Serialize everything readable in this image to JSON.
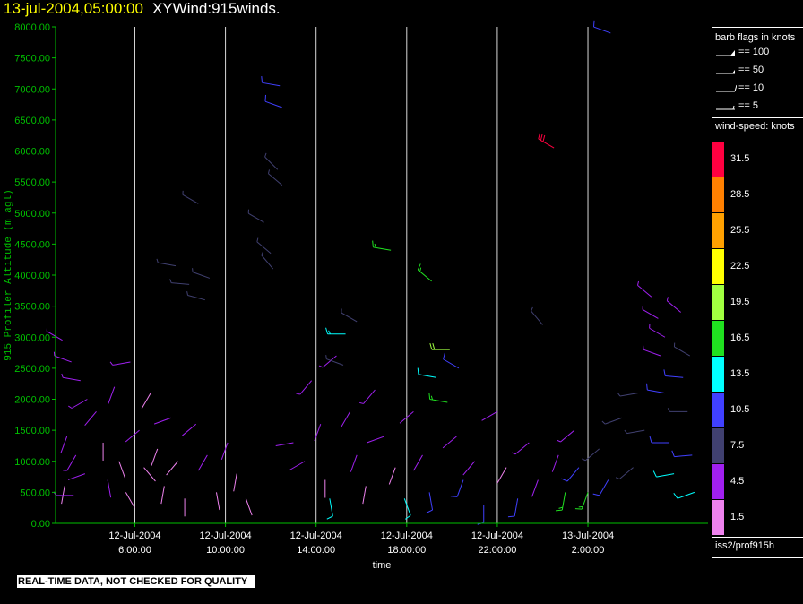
{
  "title": {
    "timestamp": "13-jul-2004,05:00:00",
    "name": "XYWind:915winds."
  },
  "chart_data": {
    "type": "scatter",
    "title": "13-jul-2004,05:00:00  XYWind:915winds.",
    "xlabel": "time",
    "ylabel": "915 Profiler Altitude (m agl)",
    "ylim": [
      0,
      8000
    ],
    "y_ticks": [
      "0.00",
      "500.00",
      "1000.00",
      "1500.00",
      "2000.00",
      "2500.00",
      "3000.00",
      "3500.00",
      "4000.00",
      "4500.00",
      "5000.00",
      "5500.00",
      "6000.00",
      "6500.00",
      "7000.00",
      "7500.00",
      "8000.00"
    ],
    "y_tick_values": [
      0,
      500,
      1000,
      1500,
      2000,
      2500,
      3000,
      3500,
      4000,
      4500,
      5000,
      5500,
      6000,
      6500,
      7000,
      7500,
      8000
    ],
    "xlim_hours": [
      2.5,
      31.3
    ],
    "x_ticks": [
      {
        "hour": 6,
        "line1": "12-Jul-2004",
        "line2": "6:00:00"
      },
      {
        "hour": 10,
        "line1": "12-Jul-2004",
        "line2": "10:00:00"
      },
      {
        "hour": 14,
        "line1": "12-Jul-2004",
        "line2": "14:00:00"
      },
      {
        "hour": 18,
        "line1": "12-Jul-2004",
        "line2": "18:00:00"
      },
      {
        "hour": 22,
        "line1": "12-Jul-2004",
        "line2": "22:00:00"
      },
      {
        "hour": 26,
        "line1": "13-Jul-2004",
        "line2": "2:00:00"
      }
    ],
    "x_axis_note": "x values are hours from 12-Jul-2004 00:00:00",
    "grid": "vertical lines at x ticks",
    "series_note": "wind barbs: one per (time, altitude); speed in knots sets colour, direction in degrees",
    "barbs": [
      {
        "t": 2.8,
        "alt": 2950,
        "spd": 5,
        "dir": 300
      },
      {
        "t": 3.2,
        "alt": 2600,
        "spd": 6,
        "dir": 290
      },
      {
        "t": 3.6,
        "alt": 2300,
        "spd": 6,
        "dir": 280
      },
      {
        "t": 3.9,
        "alt": 2000,
        "spd": 5,
        "dir": 240
      },
      {
        "t": 3.0,
        "alt": 1400,
        "spd": 4,
        "dir": 200
      },
      {
        "t": 3.4,
        "alt": 1100,
        "spd": 5,
        "dir": 210
      },
      {
        "t": 3.8,
        "alt": 800,
        "spd": 4,
        "dir": 250
      },
      {
        "t": 2.9,
        "alt": 600,
        "spd": 3,
        "dir": 190
      },
      {
        "t": 3.3,
        "alt": 450,
        "spd": 5,
        "dir": 270
      },
      {
        "t": 4.3,
        "alt": 1800,
        "spd": 4,
        "dir": 220
      },
      {
        "t": 4.6,
        "alt": 1300,
        "spd": 3,
        "dir": 180
      },
      {
        "t": 4.8,
        "alt": 700,
        "spd": 4,
        "dir": 170
      },
      {
        "t": 5.1,
        "alt": 2200,
        "spd": 4,
        "dir": 200
      },
      {
        "t": 5.3,
        "alt": 1000,
        "spd": 3,
        "dir": 160
      },
      {
        "t": 5.6,
        "alt": 500,
        "spd": 3,
        "dir": 150
      },
      {
        "t": 5.8,
        "alt": 2600,
        "spd": 5,
        "dir": 260
      },
      {
        "t": 6.2,
        "alt": 1500,
        "spd": 4,
        "dir": 230
      },
      {
        "t": 6.4,
        "alt": 900,
        "spd": 2,
        "dir": 140
      },
      {
        "t": 6.7,
        "alt": 2100,
        "spd": 3,
        "dir": 210
      },
      {
        "t": 7.0,
        "alt": 1200,
        "spd": 3,
        "dir": 200
      },
      {
        "t": 7.3,
        "alt": 600,
        "spd": 2,
        "dir": 190
      },
      {
        "t": 7.6,
        "alt": 1700,
        "spd": 4,
        "dir": 250
      },
      {
        "t": 7.9,
        "alt": 1000,
        "spd": 3,
        "dir": 220
      },
      {
        "t": 8.2,
        "alt": 400,
        "spd": 3,
        "dir": 180
      },
      {
        "t": 7.8,
        "alt": 4150,
        "spd": 8,
        "dir": 280
      },
      {
        "t": 8.4,
        "alt": 3850,
        "spd": 8,
        "dir": 275
      },
      {
        "t": 9.3,
        "alt": 3950,
        "spd": 9,
        "dir": 290
      },
      {
        "t": 9.1,
        "alt": 3600,
        "spd": 8,
        "dir": 285
      },
      {
        "t": 8.8,
        "alt": 5150,
        "spd": 8,
        "dir": 300
      },
      {
        "t": 8.7,
        "alt": 1600,
        "spd": 4,
        "dir": 230
      },
      {
        "t": 9.2,
        "alt": 1100,
        "spd": 4,
        "dir": 210
      },
      {
        "t": 9.6,
        "alt": 500,
        "spd": 3,
        "dir": 170
      },
      {
        "t": 10.1,
        "alt": 1300,
        "spd": 4,
        "dir": 200
      },
      {
        "t": 10.5,
        "alt": 800,
        "spd": 3,
        "dir": 190
      },
      {
        "t": 10.9,
        "alt": 400,
        "spd": 2,
        "dir": 160
      },
      {
        "t": 11.7,
        "alt": 4850,
        "spd": 8,
        "dir": 300
      },
      {
        "t": 12.0,
        "alt": 4350,
        "spd": 7,
        "dir": 310
      },
      {
        "t": 12.1,
        "alt": 4100,
        "spd": 8,
        "dir": 320
      },
      {
        "t": 12.3,
        "alt": 5700,
        "spd": 8,
        "dir": 315
      },
      {
        "t": 12.5,
        "alt": 5450,
        "spd": 9,
        "dir": 310
      },
      {
        "t": 12.4,
        "alt": 7050,
        "spd": 11,
        "dir": 280
      },
      {
        "t": 12.5,
        "alt": 6700,
        "spd": 10,
        "dir": 290
      },
      {
        "t": 13.0,
        "alt": 1300,
        "spd": 4,
        "dir": 260
      },
      {
        "t": 13.5,
        "alt": 1000,
        "spd": 4,
        "dir": 240
      },
      {
        "t": 13.8,
        "alt": 2300,
        "spd": 5,
        "dir": 220
      },
      {
        "t": 14.2,
        "alt": 1600,
        "spd": 4,
        "dir": 200
      },
      {
        "t": 14.4,
        "alt": 700,
        "spd": 3,
        "dir": 180
      },
      {
        "t": 14.6,
        "alt": 400,
        "spd": 13,
        "dir": 170
      },
      {
        "t": 14.9,
        "alt": 2700,
        "spd": 6,
        "dir": 230
      },
      {
        "t": 15.3,
        "alt": 3050,
        "spd": 15,
        "dir": 270
      },
      {
        "t": 15.8,
        "alt": 3250,
        "spd": 8,
        "dir": 300
      },
      {
        "t": 15.2,
        "alt": 2550,
        "spd": 9,
        "dir": 290
      },
      {
        "t": 15.5,
        "alt": 1800,
        "spd": 4,
        "dir": 210
      },
      {
        "t": 15.8,
        "alt": 1100,
        "spd": 4,
        "dir": 200
      },
      {
        "t": 16.2,
        "alt": 600,
        "spd": 3,
        "dir": 190
      },
      {
        "t": 16.6,
        "alt": 2150,
        "spd": 5,
        "dir": 220
      },
      {
        "t": 17.0,
        "alt": 1400,
        "spd": 4,
        "dir": 250
      },
      {
        "t": 17.3,
        "alt": 4400,
        "spd": 17,
        "dir": 280
      },
      {
        "t": 17.5,
        "alt": 900,
        "spd": 3,
        "dir": 200
      },
      {
        "t": 17.9,
        "alt": 400,
        "spd": 13,
        "dir": 160
      },
      {
        "t": 18.3,
        "alt": 1800,
        "spd": 4,
        "dir": 230
      },
      {
        "t": 18.7,
        "alt": 1100,
        "spd": 4,
        "dir": 210
      },
      {
        "t": 19.0,
        "alt": 500,
        "spd": 12,
        "dir": 170
      },
      {
        "t": 19.1,
        "alt": 3900,
        "spd": 17,
        "dir": 310
      },
      {
        "t": 19.3,
        "alt": 2350,
        "spd": 14,
        "dir": 280
      },
      {
        "t": 19.9,
        "alt": 2800,
        "spd": 21,
        "dir": 270
      },
      {
        "t": 19.8,
        "alt": 1950,
        "spd": 16,
        "dir": 280
      },
      {
        "t": 20.2,
        "alt": 1400,
        "spd": 4,
        "dir": 230
      },
      {
        "t": 20.5,
        "alt": 700,
        "spd": 11,
        "dir": 200
      },
      {
        "t": 20.3,
        "alt": 2500,
        "spd": 10,
        "dir": 300
      },
      {
        "t": 21.0,
        "alt": 1000,
        "spd": 4,
        "dir": 220
      },
      {
        "t": 21.4,
        "alt": 300,
        "spd": 12,
        "dir": 180
      },
      {
        "t": 22.0,
        "alt": 1800,
        "spd": 4,
        "dir": 240
      },
      {
        "t": 22.4,
        "alt": 900,
        "spd": 3,
        "dir": 210
      },
      {
        "t": 22.9,
        "alt": 400,
        "spd": 10,
        "dir": 190
      },
      {
        "t": 23.4,
        "alt": 1300,
        "spd": 5,
        "dir": 230
      },
      {
        "t": 23.8,
        "alt": 700,
        "spd": 4,
        "dir": 200
      },
      {
        "t": 24.0,
        "alt": 3200,
        "spd": 9,
        "dir": 320
      },
      {
        "t": 24.5,
        "alt": 6050,
        "spd": 33,
        "dir": 300
      },
      {
        "t": 24.7,
        "alt": 1100,
        "spd": 4,
        "dir": 200
      },
      {
        "t": 25.0,
        "alt": 500,
        "spd": 16,
        "dir": 190
      },
      {
        "t": 25.4,
        "alt": 1500,
        "spd": 5,
        "dir": 230
      },
      {
        "t": 25.6,
        "alt": 900,
        "spd": 12,
        "dir": 220
      },
      {
        "t": 26.0,
        "alt": 500,
        "spd": 18,
        "dir": 200
      },
      {
        "t": 26.5,
        "alt": 1200,
        "spd": 9,
        "dir": 230
      },
      {
        "t": 26.9,
        "alt": 700,
        "spd": 10,
        "dir": 210
      },
      {
        "t": 27.0,
        "alt": 7900,
        "spd": 12,
        "dir": 290
      },
      {
        "t": 27.5,
        "alt": 1700,
        "spd": 8,
        "dir": 250
      },
      {
        "t": 28.0,
        "alt": 900,
        "spd": 9,
        "dir": 230
      },
      {
        "t": 28.2,
        "alt": 2100,
        "spd": 8,
        "dir": 260
      },
      {
        "t": 28.5,
        "alt": 1500,
        "spd": 7,
        "dir": 260
      },
      {
        "t": 28.8,
        "alt": 3650,
        "spd": 6,
        "dir": 310
      },
      {
        "t": 29.1,
        "alt": 3300,
        "spd": 6,
        "dir": 300
      },
      {
        "t": 29.2,
        "alt": 2700,
        "spd": 5,
        "dir": 290
      },
      {
        "t": 29.4,
        "alt": 2100,
        "spd": 10,
        "dir": 280
      },
      {
        "t": 29.6,
        "alt": 1300,
        "spd": 11,
        "dir": 270
      },
      {
        "t": 29.8,
        "alt": 800,
        "spd": 13,
        "dir": 260
      },
      {
        "t": 29.4,
        "alt": 3000,
        "spd": 5,
        "dir": 300
      },
      {
        "t": 30.2,
        "alt": 2350,
        "spd": 10,
        "dir": 275
      },
      {
        "t": 30.4,
        "alt": 1800,
        "spd": 9,
        "dir": 270
      },
      {
        "t": 30.6,
        "alt": 1100,
        "spd": 12,
        "dir": 265
      },
      {
        "t": 30.7,
        "alt": 500,
        "spd": 14,
        "dir": 250
      },
      {
        "t": 30.1,
        "alt": 3400,
        "spd": 6,
        "dir": 310
      },
      {
        "t": 30.5,
        "alt": 2700,
        "spd": 7,
        "dir": 300
      }
    ]
  },
  "barb_legend": {
    "header": "barb flags in knots",
    "items": [
      {
        "label": "== 100",
        "type": "pennant"
      },
      {
        "label": "== 50",
        "type": "half-pennant"
      },
      {
        "label": "== 10",
        "type": "full-barb"
      },
      {
        "label": "== 5",
        "type": "half-barb"
      }
    ]
  },
  "speed_legend": {
    "header": "wind-speed: knots",
    "items": [
      {
        "label": "31.5",
        "color": "#ff0040"
      },
      {
        "label": "28.5",
        "color": "#ff8000"
      },
      {
        "label": "25.5",
        "color": "#ffa000"
      },
      {
        "label": "22.5",
        "color": "#ffff00"
      },
      {
        "label": "19.5",
        "color": "#a0ff40"
      },
      {
        "label": "16.5",
        "color": "#20e020"
      },
      {
        "label": "13.5",
        "color": "#00ffff"
      },
      {
        "label": "10.5",
        "color": "#4040ff"
      },
      {
        "label": "7.5",
        "color": "#404070"
      },
      {
        "label": "4.5",
        "color": "#a020f0"
      },
      {
        "label": "1.5",
        "color": "#ee82ee"
      }
    ]
  },
  "source": "iss2/prof915h",
  "qc_banner": "REAL-TIME DATA, NOT CHECKED FOR QUALITY",
  "colors": {
    "axis": "#00c000",
    "grid": "#ffffff",
    "background": "#000000"
  }
}
